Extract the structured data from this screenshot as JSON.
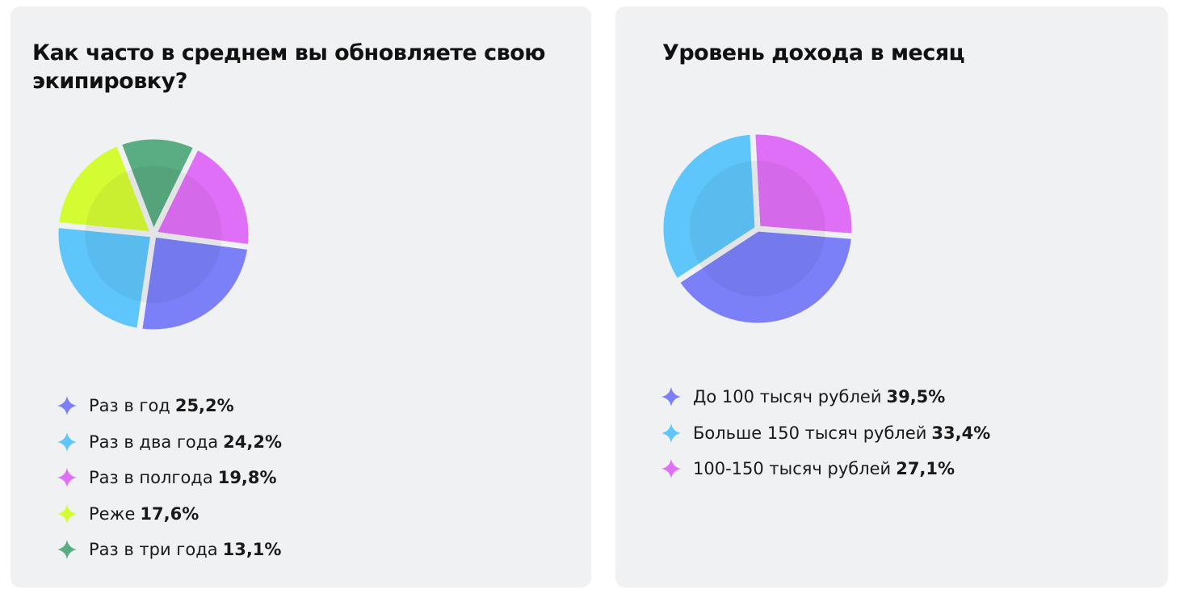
{
  "chart_data": [
    {
      "type": "pie",
      "title": "Как часто в среднем вы обновляете свою экипировку?",
      "categories": [
        "Раз в год",
        "Раз в два года",
        "Раз в полгода",
        "Реже",
        "Раз в три года"
      ],
      "values": [
        25.2,
        24.2,
        19.8,
        17.6,
        13.1
      ],
      "value_labels": [
        "25,2%",
        "24,2%",
        "19,8%",
        "17,6%",
        "13,1%"
      ],
      "colors": [
        "#7b80f8",
        "#5ec6fb",
        "#e06ff7",
        "#d4fc33",
        "#5aac82"
      ]
    },
    {
      "type": "pie",
      "title": "Уровень дохода в месяц",
      "categories": [
        "До 100 тысяч рублей",
        "Больше 150 тысяч рублей",
        "100-150 тысяч рублей"
      ],
      "values": [
        39.5,
        33.4,
        27.1
      ],
      "value_labels": [
        "39,5%",
        "33,4%",
        "27,1%"
      ],
      "colors": [
        "#7b80f8",
        "#5ec6fb",
        "#e06ff7"
      ]
    }
  ]
}
